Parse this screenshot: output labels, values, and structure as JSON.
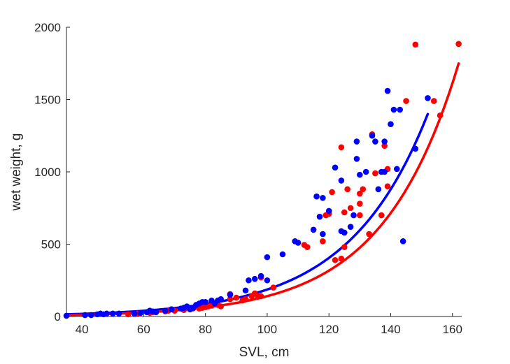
{
  "chart_data": {
    "type": "scatter",
    "title": "",
    "xlabel": "SVL, cm",
    "ylabel": "wet weight, g",
    "xlim": [
      35,
      163
    ],
    "ylim": [
      0,
      2000
    ],
    "xticks": [
      40,
      60,
      80,
      100,
      120,
      140,
      160
    ],
    "yticks": [
      0,
      500,
      1000,
      1500,
      2000
    ],
    "grid": false,
    "legend": "none",
    "series": [
      {
        "color": "#ff0000",
        "points": [
          [
            55,
            15
          ],
          [
            58,
            20
          ],
          [
            62,
            25
          ],
          [
            63,
            30
          ],
          [
            67,
            35
          ],
          [
            68,
            40
          ],
          [
            70,
            40
          ],
          [
            73,
            45
          ],
          [
            75,
            50
          ],
          [
            76,
            55
          ],
          [
            78,
            55
          ],
          [
            79,
            60
          ],
          [
            80,
            65
          ],
          [
            81,
            70
          ],
          [
            82,
            75
          ],
          [
            83,
            85
          ],
          [
            84,
            80
          ],
          [
            85,
            70
          ],
          [
            88,
            120
          ],
          [
            88,
            155
          ],
          [
            90,
            130
          ],
          [
            92,
            110
          ],
          [
            93,
            120
          ],
          [
            95,
            140
          ],
          [
            96,
            160
          ],
          [
            97,
            140
          ],
          [
            98,
            140
          ],
          [
            98,
            270
          ],
          [
            102,
            200
          ],
          [
            112,
            495
          ],
          [
            113,
            480
          ],
          [
            118,
            520
          ],
          [
            119,
            700
          ],
          [
            120,
            710
          ],
          [
            121,
            860
          ],
          [
            122,
            390
          ],
          [
            124,
            400
          ],
          [
            124,
            1170
          ],
          [
            125,
            480
          ],
          [
            125,
            720
          ],
          [
            126,
            880
          ],
          [
            127,
            750
          ],
          [
            130,
            850
          ],
          [
            130,
            780
          ],
          [
            130,
            700
          ],
          [
            131,
            880
          ],
          [
            133,
            570
          ],
          [
            134,
            1260
          ],
          [
            135,
            990
          ],
          [
            137,
            700
          ],
          [
            138,
            1180
          ],
          [
            139,
            1020
          ],
          [
            139,
            900
          ],
          [
            145,
            1490
          ],
          [
            148,
            1880
          ],
          [
            154,
            1490
          ],
          [
            156,
            1390
          ],
          [
            162,
            1885
          ]
        ]
      },
      {
        "color": "#0000ff",
        "points": [
          [
            35,
            5
          ],
          [
            41,
            10
          ],
          [
            43,
            10
          ],
          [
            45,
            15
          ],
          [
            46,
            20
          ],
          [
            47,
            15
          ],
          [
            48,
            20
          ],
          [
            50,
            20
          ],
          [
            52,
            20
          ],
          [
            57,
            20
          ],
          [
            59,
            25
          ],
          [
            61,
            30
          ],
          [
            62,
            40
          ],
          [
            63,
            35
          ],
          [
            64,
            30
          ],
          [
            67,
            40
          ],
          [
            69,
            50
          ],
          [
            72,
            55
          ],
          [
            73,
            60
          ],
          [
            74,
            70
          ],
          [
            75,
            50
          ],
          [
            76,
            60
          ],
          [
            77,
            80
          ],
          [
            78,
            90
          ],
          [
            79,
            100
          ],
          [
            80,
            100
          ],
          [
            82,
            110
          ],
          [
            83,
            90
          ],
          [
            84,
            110
          ],
          [
            85,
            120
          ],
          [
            88,
            150
          ],
          [
            93,
            180
          ],
          [
            94,
            250
          ],
          [
            96,
            260
          ],
          [
            98,
            280
          ],
          [
            100,
            250
          ],
          [
            100,
            410
          ],
          [
            105,
            430
          ],
          [
            109,
            520
          ],
          [
            110,
            510
          ],
          [
            115,
            600
          ],
          [
            116,
            830
          ],
          [
            117,
            690
          ],
          [
            118,
            570
          ],
          [
            118,
            820
          ],
          [
            120,
            730
          ],
          [
            122,
            1030
          ],
          [
            124,
            590
          ],
          [
            124,
            940
          ],
          [
            125,
            580
          ],
          [
            127,
            620
          ],
          [
            128,
            700
          ],
          [
            129,
            1090
          ],
          [
            129,
            1210
          ],
          [
            130,
            980
          ],
          [
            132,
            1000
          ],
          [
            134,
            1250
          ],
          [
            135,
            1210
          ],
          [
            136,
            880
          ],
          [
            137,
            1000
          ],
          [
            138,
            1000
          ],
          [
            138,
            1210
          ],
          [
            139,
            1560
          ],
          [
            140,
            1330
          ],
          [
            141,
            1430
          ],
          [
            142,
            1020
          ],
          [
            143,
            1430
          ],
          [
            144,
            520
          ],
          [
            148,
            1160
          ],
          [
            152,
            1510
          ]
        ]
      }
    ],
    "fits": [
      {
        "color": "#0000ff",
        "x_start": 35,
        "x_end": 152,
        "y_start": 15,
        "y_end": 1400
      },
      {
        "color": "#ff0000",
        "x_start": 35,
        "x_end": 162,
        "y_start": 10,
        "y_end": 1750
      }
    ]
  }
}
